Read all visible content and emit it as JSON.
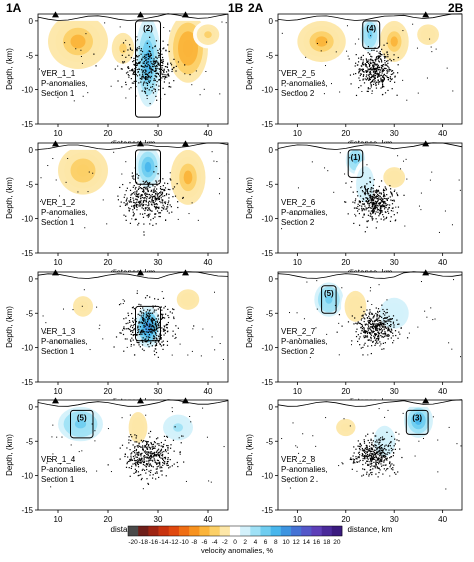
{
  "sections": {
    "left": {
      "start": "1A",
      "end": "1B"
    },
    "right": {
      "start": "2A",
      "end": "2B"
    }
  },
  "axes": {
    "ylabel": "Depth, (km)",
    "xlabel": "distance, km",
    "y_ticks": [
      0,
      -5,
      -10,
      -15
    ],
    "left_x_ticks": [
      10,
      20,
      30,
      40
    ],
    "right_x_ticks": [
      10,
      20,
      30,
      40
    ]
  },
  "colorbar": {
    "label": "velocity anomalies, %",
    "ticks": [
      -20,
      -18,
      -16,
      -14,
      -12,
      -10,
      -8,
      -6,
      -4,
      -2,
      0,
      2,
      4,
      6,
      8,
      10,
      12,
      14,
      16,
      18,
      20
    ],
    "colors": [
      "#4a4a4a",
      "#6e1f1a",
      "#9e2412",
      "#c8330e",
      "#e0480e",
      "#ef6e14",
      "#f7921f",
      "#fbb43a",
      "#fcd067",
      "#fde7a8",
      "#ffffff",
      "#d3f1fb",
      "#9fe1f6",
      "#6fcdf0",
      "#48b6ec",
      "#3d94e0",
      "#4572d4",
      "#5457c8",
      "#5d3fb8",
      "#4a2a9a",
      "#3a1a7e"
    ]
  },
  "chart_data": [
    {
      "id": "VER_1_1",
      "column": "left",
      "type": "heatmap",
      "text": [
        "VER_1_1",
        "P-anomalies,",
        "Section 1"
      ],
      "xlim": [
        6,
        44
      ],
      "ylim": [
        -15,
        1
      ],
      "stations_km": [
        9.5,
        26.5,
        35.5
      ],
      "boxes": [
        {
          "label": "(2)",
          "x0": 25.5,
          "x1": 30.5,
          "y0": 0,
          "y1": -14
        }
      ],
      "anomalies": [
        {
          "x": 14,
          "y": -3,
          "rx": 6,
          "ry": 4,
          "value": -6
        },
        {
          "x": 23,
          "y": -4,
          "rx": 3,
          "ry": 3,
          "value": -4
        },
        {
          "x": 28,
          "y": -6,
          "rx": 2.6,
          "ry": 6.5,
          "value": 8
        },
        {
          "x": 36,
          "y": -4,
          "rx": 4,
          "ry": 5,
          "value": -7
        },
        {
          "x": 40,
          "y": -2,
          "rx": 3,
          "ry": 2,
          "value": -4
        }
      ],
      "cluster": {
        "x": 28,
        "y": -7,
        "sx": 2.5,
        "sy": 1.6
      }
    },
    {
      "id": "VER_2_5",
      "column": "right",
      "type": "heatmap",
      "text": [
        "VER_2_5",
        "P-anomalies,",
        "Section 2"
      ],
      "xlim": [
        6,
        44
      ],
      "ylim": [
        -15,
        1
      ],
      "stations_km": [
        36.5
      ],
      "boxes": [
        {
          "label": "(4)",
          "x0": 23.5,
          "x1": 27,
          "y0": 0,
          "y1": -4
        }
      ],
      "anomalies": [
        {
          "x": 15,
          "y": -3,
          "rx": 5,
          "ry": 3,
          "value": -6
        },
        {
          "x": 25,
          "y": -2,
          "rx": 2,
          "ry": 2.5,
          "value": 6
        },
        {
          "x": 30,
          "y": -3,
          "rx": 3,
          "ry": 3,
          "value": -6
        },
        {
          "x": 37,
          "y": -2,
          "rx": 3,
          "ry": 2,
          "value": -3
        }
      ],
      "cluster": {
        "x": 26,
        "y": -7,
        "sx": 2,
        "sy": 1.4
      }
    },
    {
      "id": "VER_1_2",
      "column": "left",
      "type": "heatmap",
      "text": [
        "VER_1_2",
        "P-anomalies,",
        "Section 1"
      ],
      "xlim": [
        6,
        44
      ],
      "ylim": [
        -15,
        1
      ],
      "stations_km": [
        9.5,
        26.5,
        35.5
      ],
      "boxes": [
        {
          "label": "",
          "x0": 25.5,
          "x1": 30.5,
          "y0": 0,
          "y1": -5
        }
      ],
      "anomalies": [
        {
          "x": 15,
          "y": -3,
          "rx": 5,
          "ry": 3.5,
          "value": -5
        },
        {
          "x": 28,
          "y": -2.5,
          "rx": 2.6,
          "ry": 3,
          "value": 8
        },
        {
          "x": 36,
          "y": -4,
          "rx": 3.5,
          "ry": 4,
          "value": -6
        }
      ],
      "cluster": {
        "x": 28,
        "y": -7,
        "sx": 2.5,
        "sy": 1.6
      }
    },
    {
      "id": "VER_2_6",
      "column": "right",
      "type": "heatmap",
      "text": [
        "VER_2_6",
        "P-anomalies,",
        "Section 2"
      ],
      "xlim": [
        6,
        44
      ],
      "ylim": [
        -15,
        1
      ],
      "stations_km": [
        36.5
      ],
      "boxes": [
        {
          "label": "(1)",
          "x0": 20.5,
          "x1": 23.5,
          "y0": 0,
          "y1": -4
        }
      ],
      "anomalies": [
        {
          "x": 22,
          "y": -1.5,
          "rx": 2,
          "ry": 2,
          "value": 6
        },
        {
          "x": 24,
          "y": -5,
          "rx": 2.5,
          "ry": 3.5,
          "value": 2
        },
        {
          "x": 30,
          "y": -4,
          "rx": 3,
          "ry": 2,
          "value": -3
        }
      ],
      "cluster": {
        "x": 26,
        "y": -7.5,
        "sx": 2,
        "sy": 1.3
      }
    },
    {
      "id": "VER_1_3",
      "column": "left",
      "type": "heatmap",
      "text": [
        "VER_1_3",
        "P-anomalies,",
        "Section 1"
      ],
      "xlim": [
        6,
        44
      ],
      "ylim": [
        -15,
        1
      ],
      "stations_km": [
        9.5,
        26.5,
        35.5
      ],
      "boxes": [
        {
          "label": "",
          "x0": 25.5,
          "x1": 30.5,
          "y0": -4,
          "y1": -9
        }
      ],
      "anomalies": [
        {
          "x": 15,
          "y": -4,
          "rx": 4,
          "ry": 3,
          "value": -2
        },
        {
          "x": 28,
          "y": -7,
          "rx": 2.6,
          "ry": 3,
          "value": 10
        },
        {
          "x": 36,
          "y": -3,
          "rx": 3,
          "ry": 2,
          "value": -3
        }
      ],
      "cluster": {
        "x": 28,
        "y": -7,
        "sx": 2.5,
        "sy": 1.6
      }
    },
    {
      "id": "VER_2_7",
      "column": "right",
      "type": "heatmap",
      "text": [
        "VER_2_7",
        "P-anomalies,",
        "Section 2"
      ],
      "xlim": [
        6,
        44
      ],
      "ylim": [
        -15,
        1
      ],
      "stations_km": [
        36.5
      ],
      "boxes": [
        {
          "label": "(5)",
          "x0": 15,
          "x1": 18,
          "y0": -1,
          "y1": -5
        }
      ],
      "anomalies": [
        {
          "x": 16.5,
          "y": -3,
          "rx": 3,
          "ry": 2.5,
          "value": 6
        },
        {
          "x": 22,
          "y": -4,
          "rx": 3,
          "ry": 3,
          "value": -3
        },
        {
          "x": 30,
          "y": -5,
          "rx": 4,
          "ry": 3,
          "value": 2
        }
      ],
      "cluster": {
        "x": 26,
        "y": -7,
        "sx": 2,
        "sy": 1.3
      }
    },
    {
      "id": "VER_1_4",
      "column": "left",
      "type": "heatmap",
      "text": [
        "VER_1_4",
        "P-anomalies,",
        "Section 1"
      ],
      "xlim": [
        6,
        44
      ],
      "ylim": [
        -15,
        1
      ],
      "stations_km": [
        9.5,
        26.5,
        35.5
      ],
      "boxes": [
        {
          "label": "(5)",
          "x0": 12.5,
          "x1": 17,
          "y0": -0.5,
          "y1": -4.5
        }
      ],
      "anomalies": [
        {
          "x": 14.5,
          "y": -2.5,
          "rx": 4.5,
          "ry": 2.5,
          "value": 6
        },
        {
          "x": 26,
          "y": -3,
          "rx": 2.5,
          "ry": 3,
          "value": -3
        },
        {
          "x": 34,
          "y": -3,
          "rx": 4,
          "ry": 2.5,
          "value": 3
        }
      ],
      "cluster": {
        "x": 28,
        "y": -7,
        "sx": 2.5,
        "sy": 1.5
      }
    },
    {
      "id": "VER_2_8",
      "column": "right",
      "type": "heatmap",
      "text": [
        "VER_2_8",
        "P-anomalies,",
        "Section 2"
      ],
      "xlim": [
        6,
        44
      ],
      "ylim": [
        -15,
        1
      ],
      "stations_km": [
        36.5
      ],
      "boxes": [
        {
          "label": "(3)",
          "x0": 32.5,
          "x1": 37,
          "y0": -0.5,
          "y1": -4
        }
      ],
      "anomalies": [
        {
          "x": 35,
          "y": -2,
          "rx": 3,
          "ry": 2.5,
          "value": 8
        },
        {
          "x": 20,
          "y": -3,
          "rx": 4,
          "ry": 2.5,
          "value": -2
        },
        {
          "x": 28,
          "y": -5,
          "rx": 3,
          "ry": 3,
          "value": 2
        }
      ],
      "cluster": {
        "x": 26,
        "y": -7,
        "sx": 2,
        "sy": 1.3
      }
    }
  ]
}
